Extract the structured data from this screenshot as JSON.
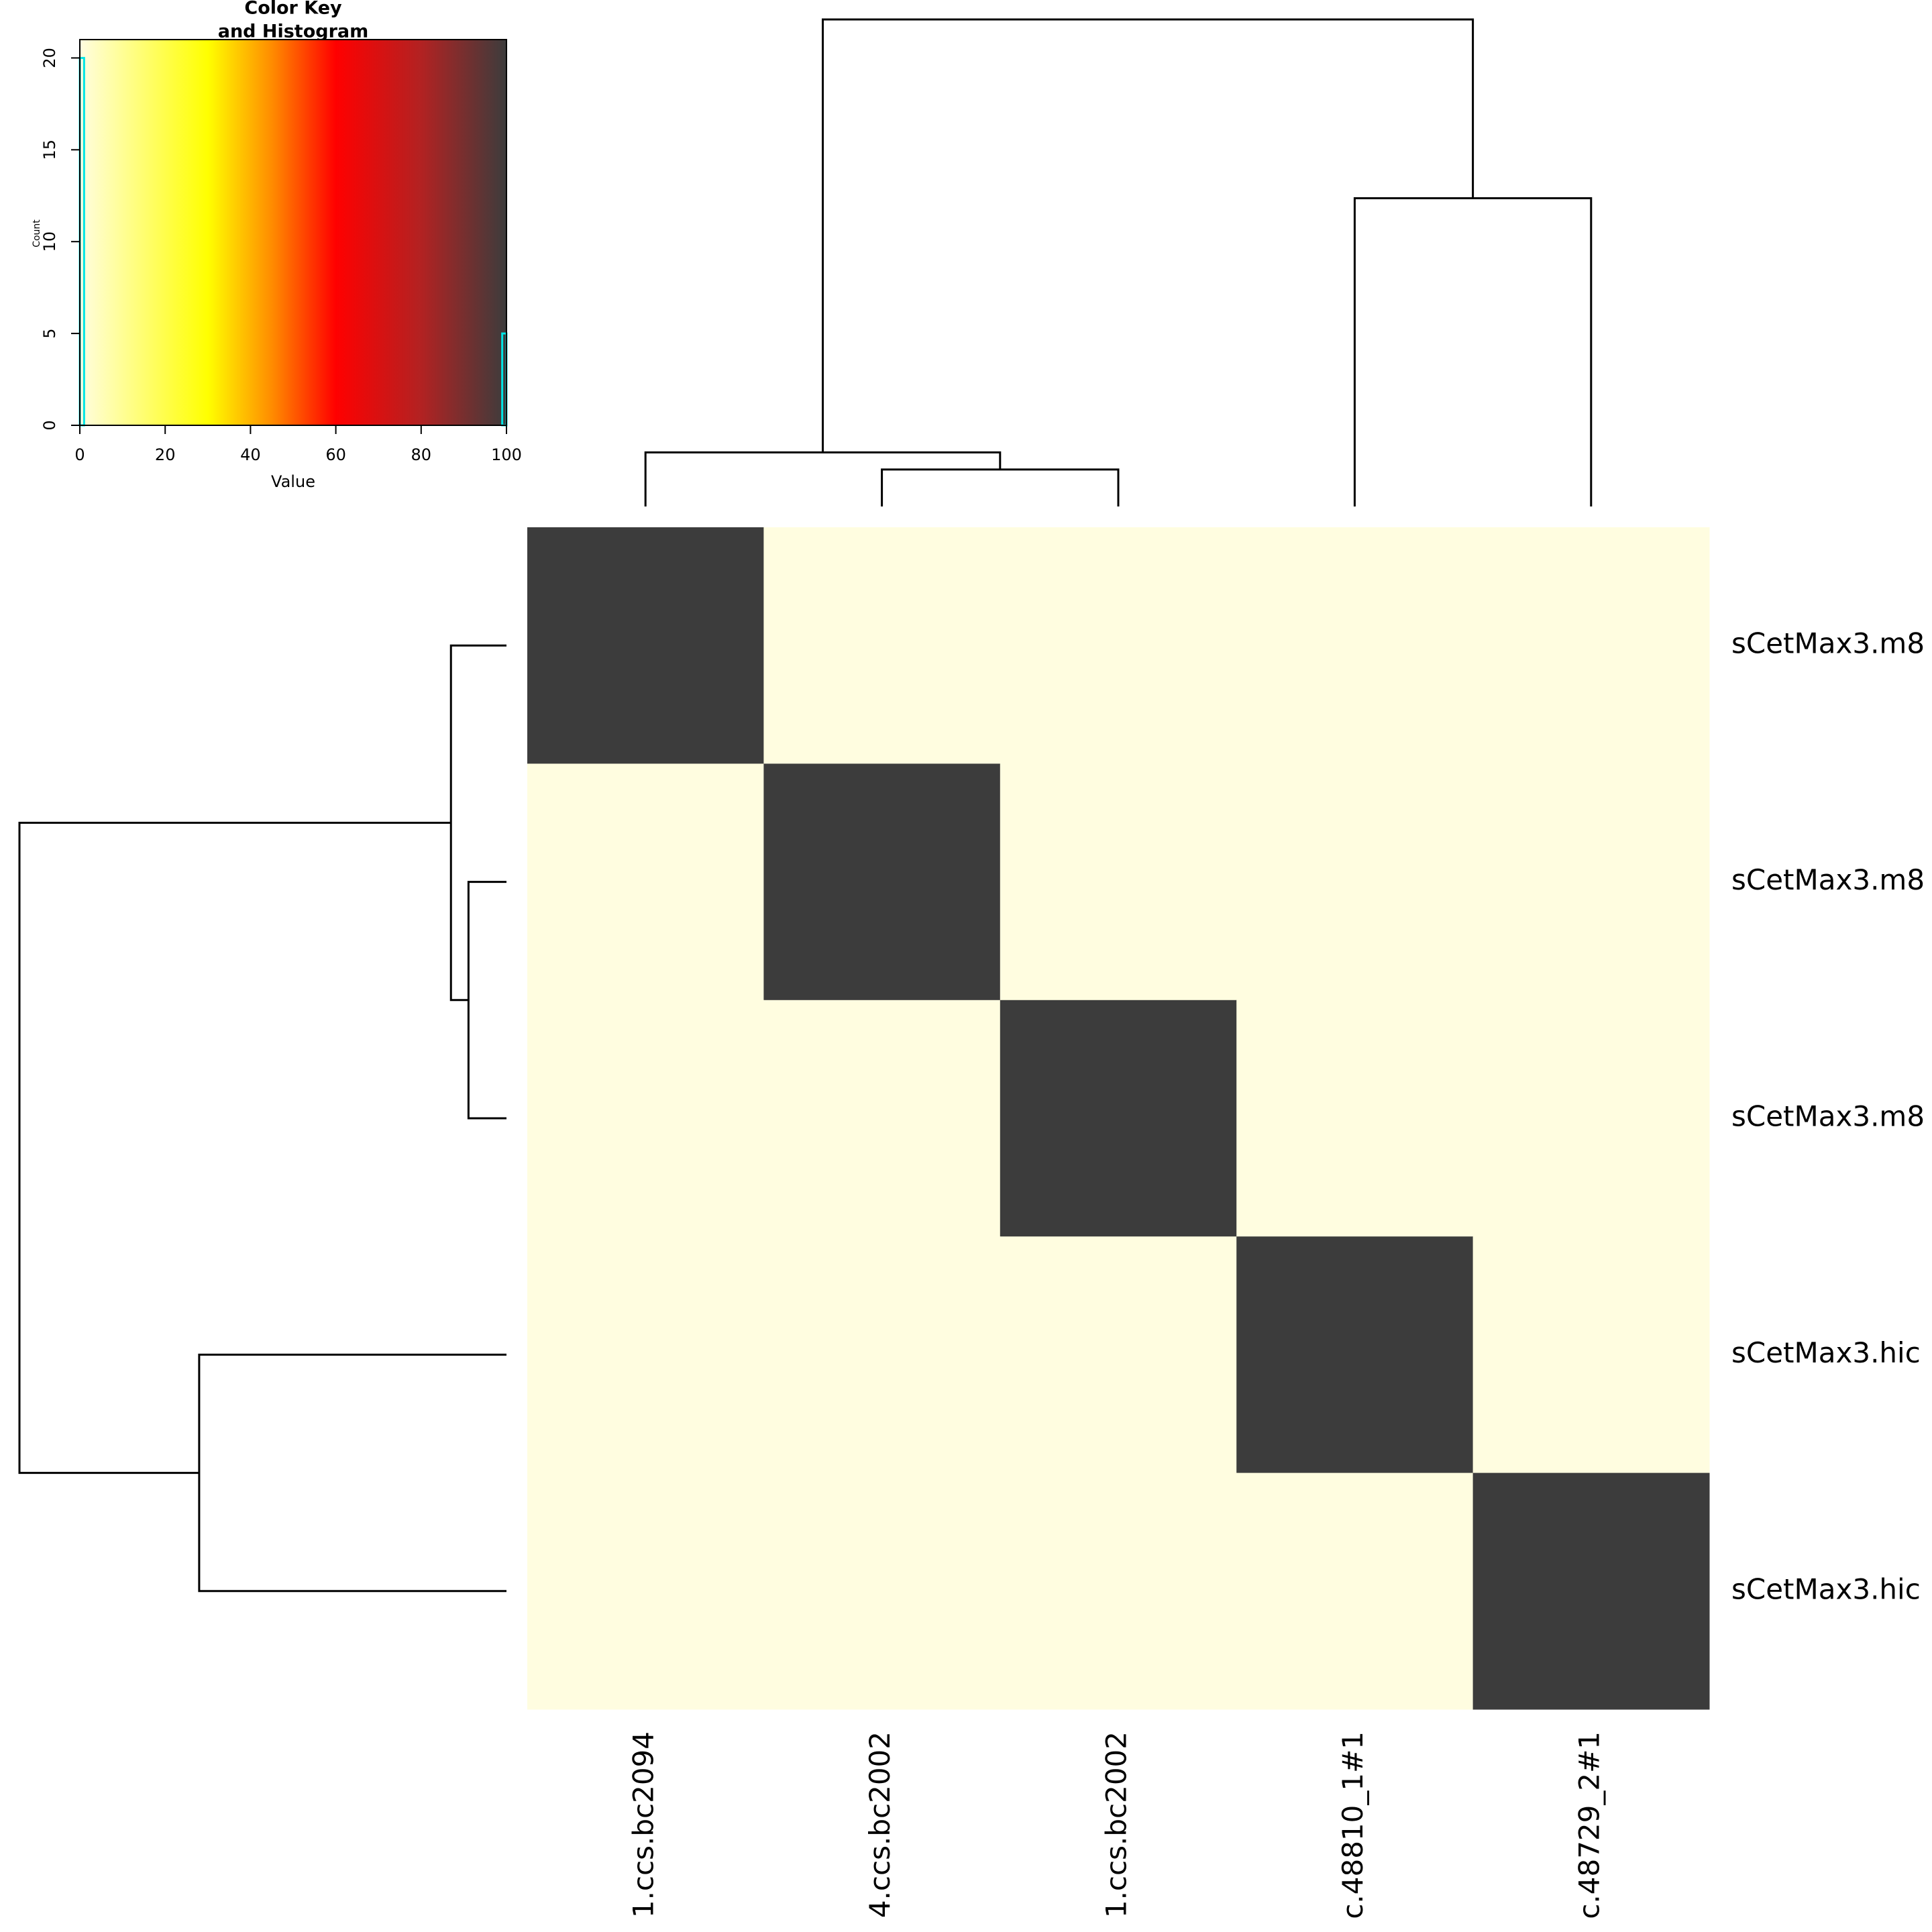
{
  "chart_data": {
    "type": "heatmap",
    "rows": [
      "sCetMax3.m8",
      "sCetMax3.m8",
      "sCetMax3.m8",
      "sCetMax3.hic",
      "sCetMax3.hic"
    ],
    "columns": [
      "1.ccs.bc2094",
      "4.ccs.bc2002",
      "1.ccs.bc2002",
      "c.48810_1#1",
      "c.48729_2#1"
    ],
    "values": [
      [
        100,
        0,
        0,
        0,
        0
      ],
      [
        0,
        100,
        0,
        0,
        0
      ],
      [
        0,
        0,
        100,
        0,
        0
      ],
      [
        0,
        0,
        0,
        100,
        0
      ],
      [
        0,
        0,
        0,
        0,
        100
      ]
    ],
    "color_scale": [
      {
        "value": 0,
        "color": "#fffde0"
      },
      {
        "value": 30,
        "color": "#ffff00"
      },
      {
        "value": 45,
        "color": "#ff8c00"
      },
      {
        "value": 60,
        "color": "#ff0000"
      },
      {
        "value": 80,
        "color": "#b22222"
      },
      {
        "value": 100,
        "color": "#3c3c3c"
      }
    ],
    "row_dendrogram": {
      "merges": [
        [
          -2,
          -3
        ],
        [
          -1,
          1
        ],
        [
          -4,
          -5
        ],
        [
          2,
          3
        ]
      ],
      "heights": [
        7.8,
        11.4,
        63.1,
        100
      ]
    },
    "column_dendrogram": {
      "merges": [
        [
          -2,
          -3
        ],
        [
          -1,
          1
        ],
        [
          -4,
          -5
        ],
        [
          2,
          3
        ]
      ],
      "heights": [
        7.6,
        11.1,
        63.3,
        100
      ]
    },
    "color_key": {
      "title": "Color Key",
      "subtitle": "and Histogram",
      "xlabel": "Value",
      "ylabel": "Count",
      "xlim": [
        0,
        100
      ],
      "ylim": [
        0,
        21
      ],
      "xticks": [
        0,
        20,
        40,
        60,
        80,
        100
      ],
      "yticks": [
        0,
        5,
        10,
        15,
        20
      ],
      "bins": [
        0,
        1,
        99,
        100
      ],
      "counts": [
        20,
        0,
        5
      ],
      "histogram_color": "#00e5e5"
    }
  }
}
